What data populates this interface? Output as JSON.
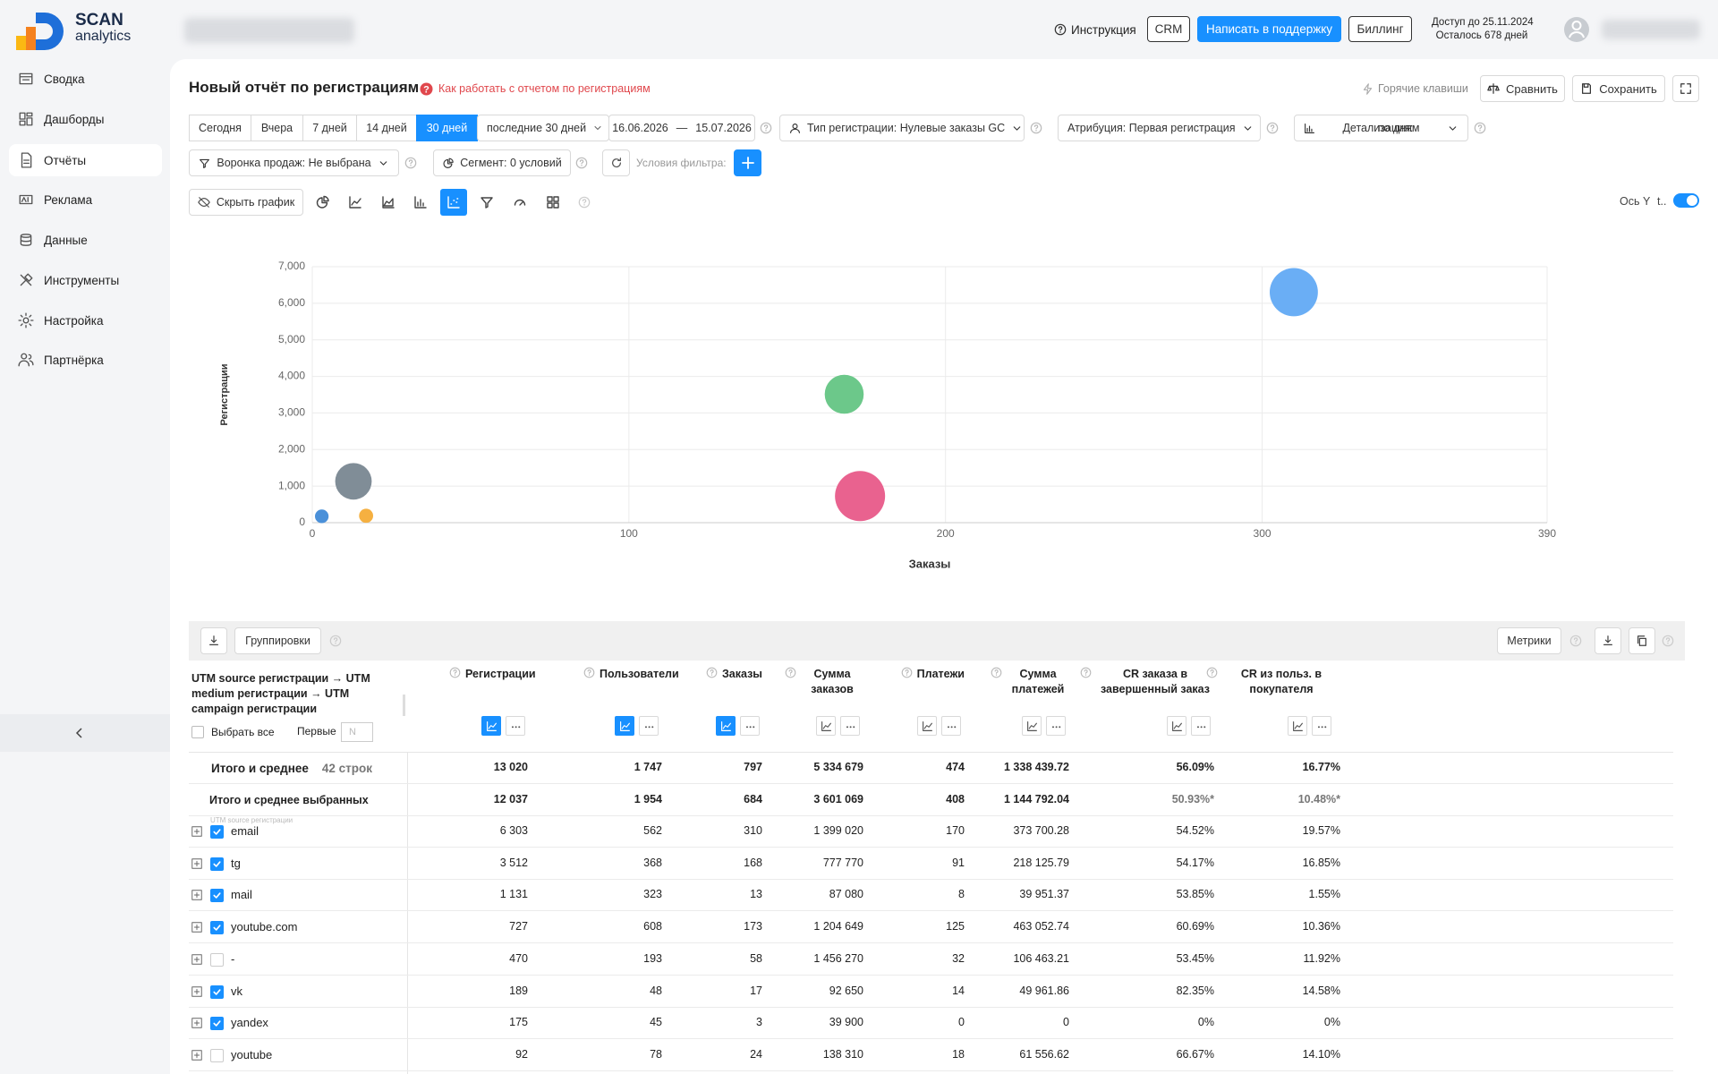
{
  "header": {
    "logo_top": "SCAN",
    "logo_bottom": "analytics",
    "help": "Инструкция",
    "crm": "CRM",
    "support": "Написать в поддержку",
    "billing": "Биллинг",
    "access": "Доступ до 25.11.2024",
    "remaining": "Осталось 678 дней"
  },
  "sidebar": {
    "items": [
      "Сводка",
      "Дашборды",
      "Отчёты",
      "Реклама",
      "Данные",
      "Инструменты",
      "Настройка",
      "Партнёрка"
    ],
    "active": 2
  },
  "report": {
    "title": "Новый отчёт по регистрациям",
    "help_link": "Как работать с отчетом по регистрациям",
    "hotkeys": "Горячие клавиши",
    "compare": "Сравнить",
    "save": "Сохранить"
  },
  "filters": {
    "periods": [
      "Сегодня",
      "Вчера",
      "7 дней",
      "14 дней",
      "30 дней"
    ],
    "active_period": 4,
    "range": "последние 30 дней",
    "date_from": "16.06.2026",
    "range_sep": "—",
    "date_to": "15.07.2026",
    "reg_type": "Тип регистрации: Нулевые заказы GC",
    "attribution": "Атрибуция: Первая регистрация",
    "detail_label": "Детализация:",
    "detail_value": "по дням",
    "funnel": "Воронка продаж: Не выбрана",
    "segment": "Сегмент: 0 условий",
    "filter_placeholder": "Условия фильтра:"
  },
  "chart_toolbar": {
    "hide": "Скрыть график",
    "axis": "Ось Y",
    "axis_short": "t.."
  },
  "chart_data": {
    "type": "scatter",
    "x_label": "Заказы",
    "y_label": "Регистрации",
    "x": [
      310,
      168,
      13,
      173,
      17,
      3
    ],
    "values": [
      6303,
      3512,
      1131,
      727,
      189,
      175
    ],
    "sizes": [
      562,
      368,
      323,
      608,
      48,
      45
    ],
    "colors": [
      "#6aaef5",
      "#6cc88a",
      "#808d97",
      "#e9628f",
      "#f5b041",
      "#4a90d9"
    ],
    "xlim": [
      0,
      390
    ],
    "xticks": [
      0,
      100,
      200,
      300,
      390
    ],
    "ylim": [
      0,
      7000
    ],
    "yticks": [
      0,
      {
        "value": 1000,
        "label": "1,000"
      },
      {
        "value": 2000,
        "label": "2,000"
      },
      {
        "value": 3000,
        "label": "3,000"
      },
      {
        "value": 4000,
        "label": "4,000"
      },
      {
        "value": 5000,
        "label": "5,000"
      },
      {
        "value": 6000,
        "label": "6,000"
      },
      {
        "value": 7000,
        "label": "7,000"
      }
    ],
    "grid": true
  },
  "table": {
    "groupings": "Группировки",
    "metrics": "Метрики",
    "dimension_header": "UTM source регистрации → UTM medium регистрации → UTM campaign регистрации",
    "select_all": "Выбрать все",
    "first": "Первые",
    "first_placeholder": "N",
    "columns": [
      "Регистрации",
      "Пользователи",
      "Заказы",
      "Сумма заказов",
      "Платежи",
      "Сумма платежей",
      "CR заказа в завершенный заказ",
      "CR из польз. в покупателя"
    ],
    "total_label": "Итого и среднее",
    "total_count": "42 строк",
    "total": [
      "13 020",
      "1 747",
      "797",
      "5 334 679",
      "474",
      "1 338 439.72",
      "56.09%",
      "16.77%"
    ],
    "selected_label": "Итого и среднее выбранных",
    "selected": [
      "12 037",
      "1 954",
      "684",
      "3 601 069",
      "408",
      "1 144 792.04",
      "50.93%*",
      "10.48%*"
    ],
    "row_hint": "UTM source регистрации",
    "rows": [
      {
        "name": "email",
        "checked": true,
        "cells": [
          "6 303",
          "562",
          "310",
          "1 399 020",
          "170",
          "373 700.28",
          "54.52%",
          "19.57%"
        ]
      },
      {
        "name": "tg",
        "checked": true,
        "cells": [
          "3 512",
          "368",
          "168",
          "777 770",
          "91",
          "218 125.79",
          "54.17%",
          "16.85%"
        ]
      },
      {
        "name": "mail",
        "checked": true,
        "cells": [
          "1 131",
          "323",
          "13",
          "87 080",
          "8",
          "39 951.37",
          "53.85%",
          "1.55%"
        ]
      },
      {
        "name": "youtube.com",
        "checked": true,
        "cells": [
          "727",
          "608",
          "173",
          "1 204 649",
          "125",
          "463 052.74",
          "60.69%",
          "10.36%"
        ]
      },
      {
        "name": "-",
        "checked": false,
        "cells": [
          "470",
          "193",
          "58",
          "1 456 270",
          "32",
          "106 463.21",
          "53.45%",
          "11.92%"
        ]
      },
      {
        "name": "vk",
        "checked": true,
        "cells": [
          "189",
          "48",
          "17",
          "92 650",
          "14",
          "49 961.86",
          "82.35%",
          "14.58%"
        ]
      },
      {
        "name": "yandex",
        "checked": true,
        "cells": [
          "175",
          "45",
          "3",
          "39 900",
          "0",
          "0",
          "0%",
          "0%"
        ]
      },
      {
        "name": "youtube",
        "checked": false,
        "cells": [
          "92",
          "78",
          "24",
          "138 310",
          "18",
          "61 556.62",
          "66.67%",
          "14.10%"
        ]
      }
    ]
  }
}
